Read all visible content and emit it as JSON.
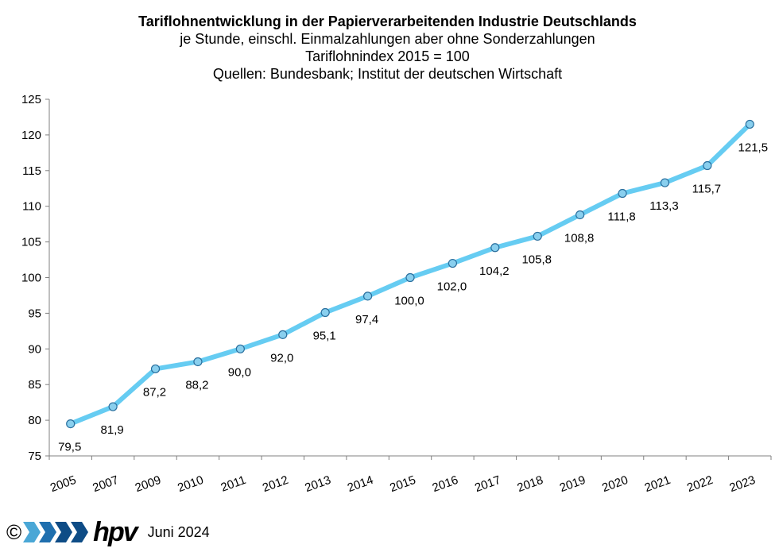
{
  "chart_data": {
    "type": "line",
    "title": "Tariflohnentwicklung in der Papierverarbeitenden Industrie Deutschlands",
    "subtitles": [
      "je Stunde, einschl. Einmalzahlungen  aber ohne Sonderzahlungen",
      "Tariflohnindex 2015 = 100",
      "Quellen: Bundesbank; Institut der deutschen Wirtschaft"
    ],
    "categories": [
      "2005",
      "2007",
      "2009",
      "2010",
      "2011",
      "2012",
      "2013",
      "2014",
      "2015",
      "2016",
      "2017",
      "2018",
      "2019",
      "2020",
      "2021",
      "2022",
      "2023"
    ],
    "series": [
      {
        "name": "Tariflohnindex",
        "values": [
          79.5,
          81.9,
          87.2,
          88.2,
          90.0,
          92.0,
          95.1,
          97.4,
          100.0,
          102.0,
          104.2,
          105.8,
          108.8,
          111.8,
          113.3,
          115.7,
          121.5
        ],
        "labels": [
          "79,5",
          "81,9",
          "87,2",
          "88,2",
          "90,0",
          "92,0",
          "95,1",
          "97,4",
          "100,0",
          "102,0",
          "104,2",
          "105,8",
          "108,8",
          "111,8",
          "113,3",
          "115,7",
          "121,5"
        ],
        "color": "#66ccf2",
        "marker_fill": "#89cfee",
        "marker_stroke": "#2a6f9e"
      }
    ],
    "y_ticks": [
      "75",
      "80",
      "85",
      "90",
      "95",
      "100",
      "105",
      "110",
      "115",
      "120",
      "125"
    ],
    "ylim": [
      75,
      125
    ],
    "xlabel": "",
    "ylabel": "",
    "grid": false,
    "legend": "none"
  },
  "footer": {
    "copyright": "©",
    "logo_text": "hpv",
    "date": "Juni 2024",
    "logo_colors": [
      "#4aa7d6",
      "#1f6fae",
      "#0e4c86"
    ]
  }
}
